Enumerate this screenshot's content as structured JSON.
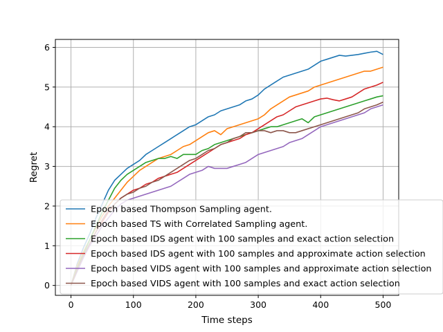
{
  "chart_data": {
    "type": "line",
    "title": "",
    "xlabel": "Time steps",
    "ylabel": "Regret",
    "xlim": [
      -25,
      525
    ],
    "ylim": [
      -0.25,
      6.2
    ],
    "xticks": [
      0,
      100,
      200,
      300,
      400,
      500
    ],
    "yticks": [
      0,
      1,
      2,
      3,
      4,
      5,
      6
    ],
    "grid": true,
    "legend_position": "lower-right",
    "x": [
      0,
      10,
      20,
      30,
      40,
      50,
      60,
      70,
      80,
      90,
      100,
      110,
      120,
      130,
      140,
      150,
      160,
      170,
      180,
      190,
      200,
      210,
      220,
      230,
      240,
      250,
      260,
      270,
      280,
      290,
      300,
      310,
      320,
      330,
      340,
      350,
      360,
      370,
      380,
      390,
      400,
      410,
      420,
      430,
      440,
      450,
      460,
      470,
      480,
      490,
      500
    ],
    "series": [
      {
        "name": "Epoch based Thompson Sampling agent.",
        "color": "#1f77b4",
        "values": [
          0.0,
          0.55,
          0.95,
          1.3,
          1.7,
          2.05,
          2.4,
          2.65,
          2.8,
          2.95,
          3.05,
          3.15,
          3.3,
          3.4,
          3.5,
          3.6,
          3.7,
          3.8,
          3.9,
          4.0,
          4.05,
          4.15,
          4.25,
          4.3,
          4.4,
          4.45,
          4.5,
          4.55,
          4.65,
          4.7,
          4.8,
          4.95,
          5.05,
          5.15,
          5.25,
          5.3,
          5.35,
          5.4,
          5.45,
          5.55,
          5.65,
          5.7,
          5.75,
          5.8,
          5.78,
          5.8,
          5.82,
          5.85,
          5.88,
          5.9,
          5.82
        ]
      },
      {
        "name": "Epoch based TS with Correlated Sampling agent.",
        "color": "#ff7f0e",
        "values": [
          0.0,
          0.5,
          0.85,
          1.15,
          1.45,
          1.75,
          2.0,
          2.2,
          2.4,
          2.6,
          2.75,
          2.9,
          3.0,
          3.1,
          3.2,
          3.25,
          3.3,
          3.4,
          3.5,
          3.55,
          3.65,
          3.75,
          3.85,
          3.9,
          3.8,
          3.95,
          4.0,
          4.05,
          4.1,
          4.15,
          4.2,
          4.3,
          4.45,
          4.55,
          4.65,
          4.75,
          4.8,
          4.85,
          4.9,
          5.0,
          5.05,
          5.1,
          5.15,
          5.2,
          5.25,
          5.3,
          5.35,
          5.4,
          5.4,
          5.45,
          5.5
        ]
      },
      {
        "name": "Epoch based IDS agent with 100 samples and exact action selection",
        "color": "#2ca02c",
        "values": [
          0.0,
          0.45,
          0.8,
          1.15,
          1.5,
          1.85,
          2.15,
          2.45,
          2.65,
          2.8,
          2.9,
          3.0,
          3.1,
          3.15,
          3.2,
          3.2,
          3.25,
          3.2,
          3.3,
          3.3,
          3.3,
          3.4,
          3.45,
          3.55,
          3.6,
          3.65,
          3.7,
          3.75,
          3.8,
          3.85,
          3.9,
          3.95,
          4.0,
          4.0,
          4.05,
          4.1,
          4.15,
          4.2,
          4.1,
          4.25,
          4.3,
          4.35,
          4.4,
          4.45,
          4.5,
          4.55,
          4.6,
          4.65,
          4.7,
          4.75,
          4.78
        ]
      },
      {
        "name": "Epoch based IDS agent with 100 samples and approximate action selection",
        "color": "#d62728",
        "values": [
          0.0,
          0.4,
          0.75,
          1.05,
          1.35,
          1.6,
          1.85,
          2.05,
          2.2,
          2.3,
          2.4,
          2.45,
          2.55,
          2.6,
          2.7,
          2.75,
          2.8,
          2.85,
          2.95,
          3.05,
          3.15,
          3.25,
          3.35,
          3.45,
          3.55,
          3.6,
          3.65,
          3.7,
          3.8,
          3.85,
          3.95,
          4.05,
          4.15,
          4.25,
          4.3,
          4.4,
          4.5,
          4.55,
          4.6,
          4.65,
          4.7,
          4.72,
          4.68,
          4.65,
          4.7,
          4.75,
          4.85,
          4.95,
          5.0,
          5.05,
          5.12
        ]
      },
      {
        "name": "Epoch based VIDS agent with 100 samples and approximate action selection",
        "color": "#9467bd",
        "values": [
          0.0,
          0.35,
          0.7,
          1.0,
          1.25,
          1.5,
          1.7,
          1.9,
          2.05,
          2.15,
          2.2,
          2.25,
          2.3,
          2.35,
          2.4,
          2.45,
          2.5,
          2.6,
          2.7,
          2.8,
          2.85,
          2.9,
          3.0,
          2.95,
          2.95,
          2.95,
          3.0,
          3.05,
          3.1,
          3.2,
          3.3,
          3.35,
          3.4,
          3.45,
          3.5,
          3.6,
          3.65,
          3.7,
          3.8,
          3.9,
          4.0,
          4.05,
          4.1,
          4.15,
          4.2,
          4.25,
          4.3,
          4.35,
          4.45,
          4.5,
          4.55
        ]
      },
      {
        "name": "Epoch based VIDS agent with 100 samples and exact action selection",
        "color": "#8c564b",
        "values": [
          0.0,
          0.4,
          0.75,
          1.05,
          1.35,
          1.65,
          1.9,
          2.05,
          2.2,
          2.3,
          2.35,
          2.45,
          2.5,
          2.6,
          2.65,
          2.75,
          2.85,
          2.95,
          3.05,
          3.15,
          3.2,
          3.3,
          3.4,
          3.45,
          3.55,
          3.6,
          3.7,
          3.75,
          3.85,
          3.85,
          3.9,
          3.9,
          3.85,
          3.9,
          3.9,
          3.85,
          3.85,
          3.9,
          3.95,
          4.0,
          4.05,
          4.1,
          4.15,
          4.2,
          4.25,
          4.3,
          4.35,
          4.45,
          4.5,
          4.55,
          4.62
        ]
      }
    ]
  }
}
